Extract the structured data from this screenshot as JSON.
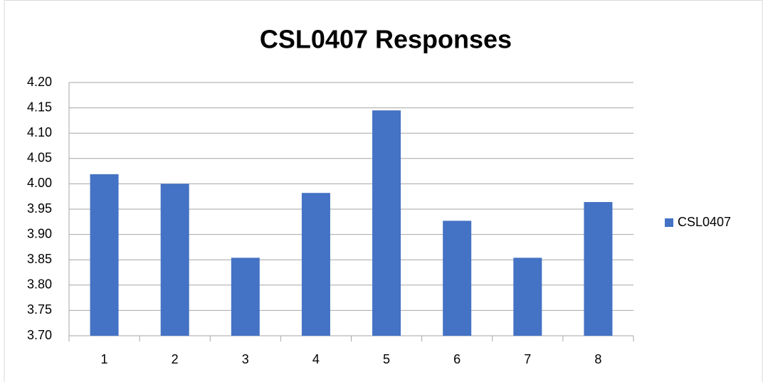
{
  "chart_data": {
    "type": "bar",
    "title": "CSL0407 Responses",
    "categories": [
      "1",
      "2",
      "3",
      "4",
      "5",
      "6",
      "7",
      "8"
    ],
    "series": [
      {
        "name": "CSL0407",
        "color": "#4472c4",
        "values": [
          4.019,
          4.0,
          3.854,
          3.982,
          4.145,
          3.927,
          3.854,
          3.964
        ]
      }
    ],
    "ylim": [
      3.7,
      4.2
    ],
    "yticks": [
      {
        "value": 3.7,
        "label": "3.70"
      },
      3.75,
      {
        "value": 3.8,
        "label": "3.80"
      },
      3.85,
      {
        "value": 3.9,
        "label": "3.90"
      },
      3.95,
      {
        "value": 4.0,
        "label": "4.00"
      },
      4.05,
      {
        "value": 4.1,
        "label": "4.10"
      },
      4.15,
      {
        "value": 4.2,
        "label": "4.20"
      }
    ],
    "grid": true,
    "legend": "right"
  }
}
